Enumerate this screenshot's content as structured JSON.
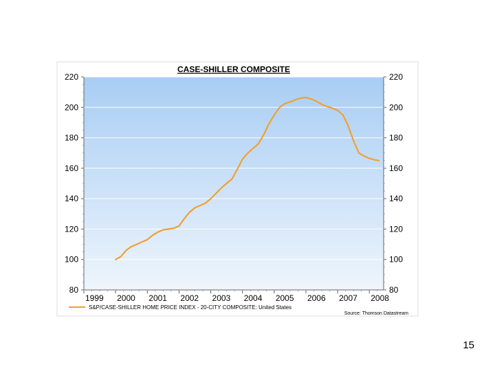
{
  "page": {
    "slide_number": "15"
  },
  "chart_data": {
    "type": "line",
    "title": "CASE-SHILLER COMPOSITE",
    "xlabel": "",
    "ylabel": "",
    "ylim": [
      80,
      220
    ],
    "yticks": [
      80,
      100,
      120,
      140,
      160,
      180,
      200,
      220
    ],
    "x_tick_labels": [
      "1999",
      "2000",
      "2001",
      "2002",
      "2003",
      "2004",
      "2005",
      "2006",
      "2007",
      "2008"
    ],
    "xlim": [
      1999.0,
      2008.45
    ],
    "grid": true,
    "legend_position": "bottom-left",
    "source": "Source: Thomson Datastream",
    "colors": {
      "line": "#f0a030",
      "background_top": "#a8cdf4",
      "background_bottom": "#eef5fc",
      "grid": "#ffffff",
      "frame": "#dddddd"
    },
    "series": [
      {
        "name": "S&P/CASE-SHILLER HOME PRICE INDEX - 20-CITY COMPOSITE: United States",
        "x": [
          2000.0,
          2000.17,
          2000.33,
          2000.5,
          2000.67,
          2000.83,
          2001.0,
          2001.17,
          2001.33,
          2001.5,
          2001.67,
          2001.83,
          2002.0,
          2002.17,
          2002.33,
          2002.5,
          2002.67,
          2002.83,
          2003.0,
          2003.17,
          2003.33,
          2003.5,
          2003.67,
          2003.83,
          2004.0,
          2004.17,
          2004.33,
          2004.5,
          2004.67,
          2004.83,
          2005.0,
          2005.17,
          2005.33,
          2005.5,
          2005.67,
          2005.83,
          2006.0,
          2006.17,
          2006.33,
          2006.5,
          2006.67,
          2006.83,
          2007.0,
          2007.17,
          2007.33,
          2007.5,
          2007.67,
          2007.83,
          2008.0,
          2008.17,
          2008.3
        ],
        "values": [
          100.0,
          102.0,
          106.0,
          108.5,
          110.0,
          111.5,
          113.0,
          116.0,
          118.0,
          119.5,
          120.0,
          120.5,
          122.0,
          127.0,
          131.0,
          134.0,
          135.5,
          137.0,
          140.0,
          143.5,
          147.0,
          150.0,
          153.0,
          159.0,
          166.0,
          170.0,
          173.0,
          176.0,
          182.0,
          189.0,
          195.0,
          200.0,
          202.5,
          203.5,
          205.0,
          206.0,
          206.5,
          205.5,
          204.0,
          202.0,
          200.5,
          199.5,
          198.0,
          195.0,
          188.0,
          178.0,
          170.0,
          168.0,
          166.5,
          165.5,
          165.0
        ]
      }
    ]
  }
}
